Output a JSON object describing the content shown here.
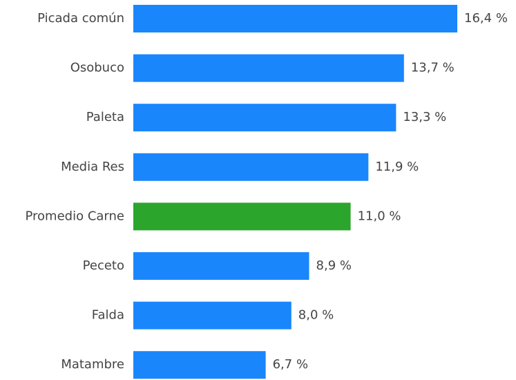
{
  "chart_data": {
    "type": "hbar",
    "categories": [
      "Picada común",
      "Osobuco",
      "Paleta",
      "Media Res",
      "Promedio Carne",
      "Peceto",
      "Falda",
      "Matambre"
    ],
    "values": [
      16.4,
      13.7,
      13.3,
      11.9,
      11.0,
      8.9,
      8.0,
      6.7
    ],
    "value_labels": [
      "16,4 %",
      "13,7 %",
      "13,3 %",
      "11,9 %",
      "11,0 %",
      "8,9 %",
      "8,0 %",
      "6,7 %"
    ],
    "colors": [
      "#1a86fc",
      "#1a86fc",
      "#1a86fc",
      "#1a86fc",
      "#2ca52c",
      "#1a86fc",
      "#1a86fc",
      "#1a86fc"
    ]
  }
}
